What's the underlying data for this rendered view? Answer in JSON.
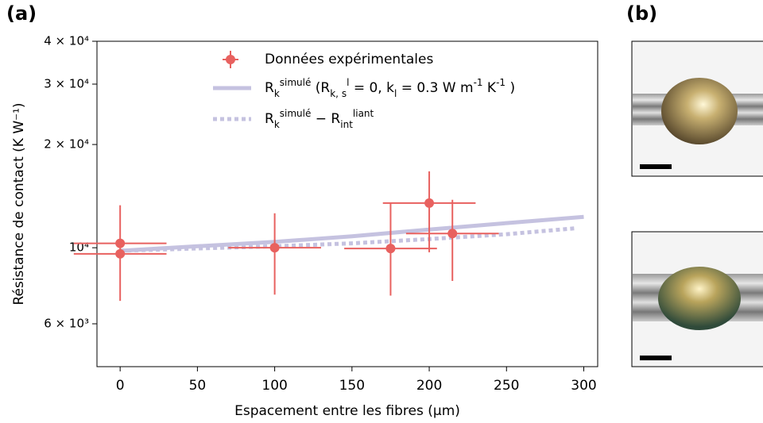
{
  "panel_labels": [
    "(a)",
    "(b)"
  ],
  "chart_data": {
    "type": "errorbar",
    "xlabel": "Espacement entre les fibres (µm)",
    "ylabel": "Résistance de contact (K W⁻¹)",
    "xlim": [
      -15,
      309
    ],
    "xticks": [
      0,
      50,
      100,
      150,
      200,
      250,
      300
    ],
    "ylim": [
      4500,
      40000
    ],
    "yscale": "log",
    "yticks": [
      {
        "value": 6000,
        "label": "6 × 10³"
      },
      {
        "value": 10000,
        "label": "10⁴"
      },
      {
        "value": 20000,
        "label": "2 × 10⁴"
      },
      {
        "value": 30000,
        "label": "3 × 10⁴"
      },
      {
        "value": 40000,
        "label": "4 × 10⁴"
      }
    ],
    "legend": "upper center",
    "series": [
      {
        "name": "Données expérimentales",
        "type": "errorbar",
        "color": "#e8615f",
        "x": [
          0,
          0,
          100,
          175,
          200,
          215
        ],
        "values": [
          10300,
          9600,
          10000,
          9950,
          13500,
          11000
        ],
        "xerr": [
          30,
          30,
          30,
          30,
          30,
          30
        ],
        "yerr_minus": [
          3300,
          0,
          2700,
          2700,
          3800,
          3000
        ],
        "yerr_plus": [
          3000,
          0,
          2600,
          3500,
          3200,
          2800
        ]
      },
      {
        "name": "R_{k}^{simulé} (R_{k, s}^{l} = 0, k_{l} = 0.3  W m^{-1} K^{-1} )",
        "type": "line",
        "style": "solid",
        "color": "#c5c2e0",
        "x": [
          0,
          50,
          100,
          150,
          200,
          250,
          300
        ],
        "values": [
          9800,
          10100,
          10400,
          10800,
          11300,
          11800,
          12300
        ]
      },
      {
        "name": "R_{k}^{simulé} − R_{int}^{liant}",
        "type": "line",
        "style": "dotted",
        "color": "#c5c2e0",
        "x": [
          0,
          50,
          100,
          150,
          200,
          250,
          295
        ],
        "values": [
          9800,
          9950,
          10100,
          10300,
          10600,
          10950,
          11400
        ]
      }
    ]
  }
}
